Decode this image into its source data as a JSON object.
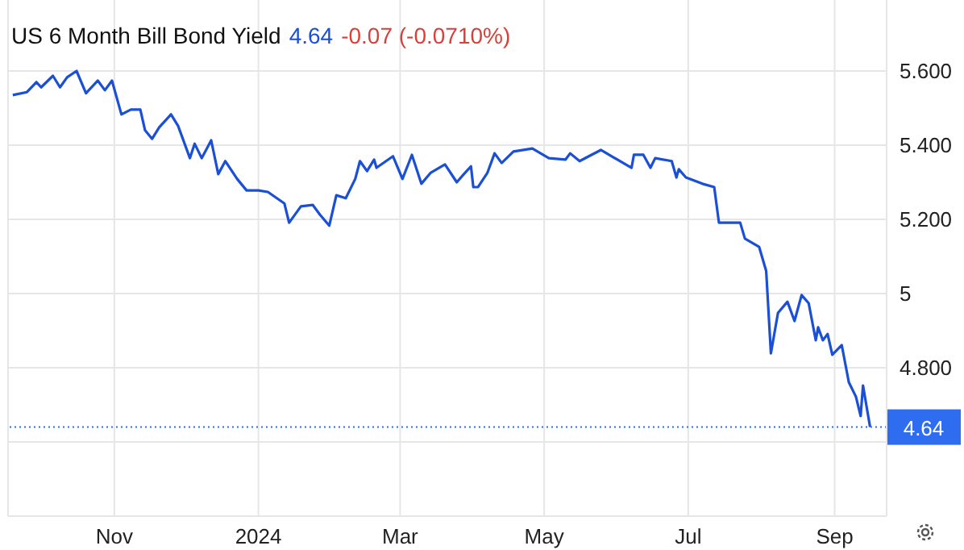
{
  "chart_data": {
    "type": "line",
    "title": "US 6 Month Bill Bond Yield",
    "annotations": [
      "4.64",
      "-0.07 (-0.0710%)"
    ],
    "x": [
      "2023-09-19",
      "2023-09-25",
      "2023-09-29",
      "2023-10-01",
      "2023-10-06",
      "2023-10-09",
      "2023-10-12",
      "2023-10-16",
      "2023-10-20",
      "2023-10-25",
      "2023-10-28",
      "2023-10-31",
      "2023-11-04",
      "2023-11-08",
      "2023-11-12",
      "2023-11-14",
      "2023-11-17",
      "2023-11-20",
      "2023-11-25",
      "2023-11-28",
      "2023-12-03",
      "2023-12-05",
      "2023-12-08",
      "2023-12-12",
      "2023-12-15",
      "2023-12-18",
      "2023-12-23",
      "2023-12-27",
      "2024-01-01",
      "2024-01-05",
      "2024-01-12",
      "2024-01-14",
      "2024-01-19",
      "2024-01-24",
      "2024-01-27",
      "2024-01-31",
      "2024-02-03",
      "2024-02-07",
      "2024-02-11",
      "2024-02-13",
      "2024-02-16",
      "2024-02-19",
      "2024-02-20",
      "2024-02-27",
      "2024-03-02",
      "2024-03-06",
      "2024-03-10",
      "2024-03-14",
      "2024-03-20",
      "2024-03-25",
      "2024-03-28",
      "2024-03-31",
      "2024-04-01",
      "2024-04-03",
      "2024-04-07",
      "2024-04-10",
      "2024-04-13",
      "2024-04-18",
      "2024-04-26",
      "2024-05-03",
      "2024-05-10",
      "2024-05-12",
      "2024-05-16",
      "2024-05-25",
      "2024-06-01",
      "2024-06-07",
      "2024-06-08",
      "2024-06-12",
      "2024-06-15",
      "2024-06-17",
      "2024-06-24",
      "2024-06-26",
      "2024-06-27",
      "2024-06-30",
      "2024-07-07",
      "2024-07-12",
      "2024-07-14",
      "2024-07-17",
      "2024-07-23",
      "2024-07-25",
      "2024-07-31",
      "2024-08-03",
      "2024-08-05",
      "2024-08-08",
      "2024-08-12",
      "2024-08-15",
      "2024-08-18",
      "2024-08-21",
      "2024-08-24",
      "2024-08-25",
      "2024-08-27",
      "2024-08-29",
      "2024-08-31",
      "2024-09-04",
      "2024-09-07",
      "2024-09-10",
      "2024-09-12",
      "2024-09-13",
      "2024-09-16"
    ],
    "series": [
      {
        "color": "#1a4fd6",
        "values": [
          5.535,
          5.543,
          5.57,
          5.556,
          5.587,
          5.556,
          5.583,
          5.6,
          5.54,
          5.574,
          5.548,
          5.574,
          5.483,
          5.496,
          5.496,
          5.44,
          5.417,
          5.448,
          5.483,
          5.452,
          5.365,
          5.404,
          5.365,
          5.413,
          5.322,
          5.357,
          5.309,
          5.278,
          5.278,
          5.274,
          5.243,
          5.191,
          5.235,
          5.239,
          5.213,
          5.183,
          5.265,
          5.257,
          5.309,
          5.357,
          5.33,
          5.361,
          5.339,
          5.37,
          5.309,
          5.374,
          5.296,
          5.326,
          5.348,
          5.3,
          5.322,
          5.343,
          5.287,
          5.287,
          5.326,
          5.378,
          5.352,
          5.383,
          5.391,
          5.365,
          5.361,
          5.378,
          5.357,
          5.387,
          5.361,
          5.339,
          5.374,
          5.374,
          5.339,
          5.365,
          5.357,
          5.313,
          5.335,
          5.313,
          5.296,
          5.287,
          5.191,
          5.191,
          5.191,
          5.148,
          5.126,
          5.061,
          4.839,
          4.948,
          4.978,
          4.926,
          4.996,
          4.974,
          4.874,
          4.909,
          4.874,
          4.891,
          4.835,
          4.861,
          4.761,
          4.722,
          4.67,
          4.752,
          4.64
        ]
      }
    ],
    "xlim": [
      "2023-09-17",
      "2024-09-23"
    ],
    "xticks": [
      {
        "value": "2023-11-01",
        "label": "Nov"
      },
      {
        "value": "2024-01-01",
        "label": "2024"
      },
      {
        "value": "2024-03-01",
        "label": "Mar"
      },
      {
        "value": "2024-05-01",
        "label": "May"
      },
      {
        "value": "2024-07-01",
        "label": "Jul"
      },
      {
        "value": "2024-09-01",
        "label": "Sep"
      }
    ],
    "ylim": [
      4.4,
      5.8
    ],
    "yticks": [
      {
        "value": 4.6,
        "label": null
      },
      {
        "value": 4.8,
        "label": "4.800"
      },
      {
        "value": 5,
        "label": "5"
      },
      {
        "value": 5.2,
        "label": "5.200"
      },
      {
        "value": 5.4,
        "label": "5.400"
      },
      {
        "value": 5.6,
        "label": "5.600"
      }
    ],
    "ref_lines": [
      {
        "axis": "y",
        "value": 4.64,
        "label": "4.64",
        "color": "#2f6df0",
        "line_style": "dotted"
      }
    ],
    "grid": true,
    "marker": "none",
    "line_style": "solid"
  }
}
